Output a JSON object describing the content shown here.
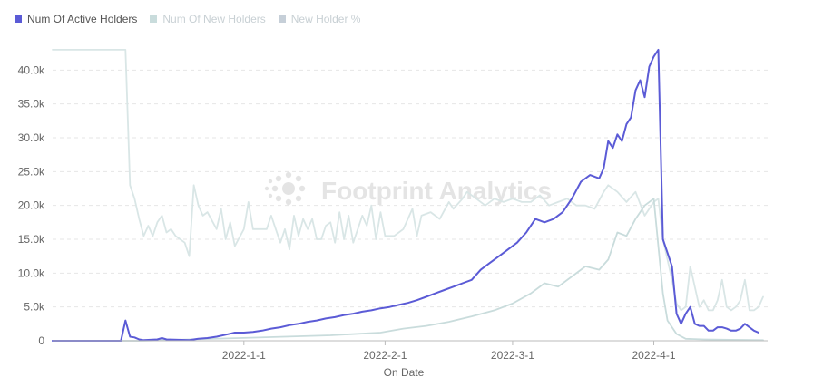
{
  "legend": [
    {
      "label": "Num Of Active Holders",
      "color": "#5b5bd6",
      "active": true
    },
    {
      "label": "Num Of New Holders",
      "color": "#c9dcdc",
      "active": false
    },
    {
      "label": "New Holder %",
      "color": "#c6cfd8",
      "active": false
    }
  ],
  "watermark": "Footprint Analytics",
  "chart_data": {
    "type": "line",
    "xlabel": "On Date",
    "ylabel": "",
    "x_range": [
      "2021-11-20",
      "2022-04-26"
    ],
    "ylim": [
      0,
      45000
    ],
    "y_ticks": [
      0,
      5000,
      10000,
      15000,
      20000,
      25000,
      30000,
      35000,
      40000
    ],
    "y_tick_labels": [
      "0",
      "5.0k",
      "10.0k",
      "15.0k",
      "20.0k",
      "25.0k",
      "30.0k",
      "35.0k",
      "40.0k"
    ],
    "x_ticks": [
      "2022-01-01",
      "2022-02-01",
      "2022-03-01",
      "2022-04-01"
    ],
    "x_tick_labels": [
      "2022-1-1",
      "2022-2-1",
      "2022-3-1",
      "2022-4-1"
    ],
    "grid": "horizontal dashed",
    "legend_position": "top-left",
    "series": [
      {
        "name": "New Holder %",
        "color": "#d9e6e6",
        "visible": true,
        "points": [
          [
            "2021-11-20",
            43000
          ],
          [
            "2021-12-06",
            43000
          ],
          [
            "2021-12-07",
            23000
          ],
          [
            "2021-12-08",
            21000
          ],
          [
            "2021-12-09",
            18000
          ],
          [
            "2021-12-10",
            15500
          ],
          [
            "2021-12-11",
            17000
          ],
          [
            "2021-12-12",
            15500
          ],
          [
            "2021-12-13",
            17500
          ],
          [
            "2021-12-14",
            18500
          ],
          [
            "2021-12-15",
            16000
          ],
          [
            "2021-12-16",
            16500
          ],
          [
            "2021-12-17",
            15500
          ],
          [
            "2021-12-18",
            15000
          ],
          [
            "2021-12-19",
            14500
          ],
          [
            "2021-12-20",
            12500
          ],
          [
            "2021-12-21",
            23000
          ],
          [
            "2021-12-22",
            20000
          ],
          [
            "2021-12-23",
            18500
          ],
          [
            "2021-12-24",
            19000
          ],
          [
            "2021-12-26",
            16500
          ],
          [
            "2021-12-27",
            19500
          ],
          [
            "2021-12-28",
            15000
          ],
          [
            "2021-12-29",
            17500
          ],
          [
            "2021-12-30",
            14000
          ],
          [
            "2022-01-01",
            16500
          ],
          [
            "2022-01-02",
            20500
          ],
          [
            "2022-01-03",
            16500
          ],
          [
            "2022-01-04",
            16500
          ],
          [
            "2022-01-05",
            16500
          ],
          [
            "2022-01-06",
            16500
          ],
          [
            "2022-01-07",
            18500
          ],
          [
            "2022-01-08",
            16500
          ],
          [
            "2022-01-09",
            14500
          ],
          [
            "2022-01-10",
            16500
          ],
          [
            "2022-01-11",
            13500
          ],
          [
            "2022-01-12",
            18500
          ],
          [
            "2022-01-13",
            15500
          ],
          [
            "2022-01-14",
            18000
          ],
          [
            "2022-01-15",
            16500
          ],
          [
            "2022-01-16",
            18000
          ],
          [
            "2022-01-17",
            15000
          ],
          [
            "2022-01-18",
            15000
          ],
          [
            "2022-01-19",
            17000
          ],
          [
            "2022-01-20",
            17500
          ],
          [
            "2022-01-21",
            14500
          ],
          [
            "2022-01-22",
            19000
          ],
          [
            "2022-01-23",
            15000
          ],
          [
            "2022-01-24",
            18500
          ],
          [
            "2022-01-25",
            14500
          ],
          [
            "2022-01-26",
            16500
          ],
          [
            "2022-01-27",
            18500
          ],
          [
            "2022-01-28",
            17000
          ],
          [
            "2022-01-29",
            20000
          ],
          [
            "2022-01-30",
            15000
          ],
          [
            "2022-01-31",
            19000
          ],
          [
            "2022-02-01",
            15500
          ],
          [
            "2022-02-03",
            15500
          ],
          [
            "2022-02-05",
            16500
          ],
          [
            "2022-02-07",
            19500
          ],
          [
            "2022-02-08",
            15500
          ],
          [
            "2022-02-09",
            18500
          ],
          [
            "2022-02-11",
            19000
          ],
          [
            "2022-02-13",
            18000
          ],
          [
            "2022-02-15",
            20500
          ],
          [
            "2022-02-16",
            19500
          ],
          [
            "2022-02-18",
            21000
          ],
          [
            "2022-02-19",
            22000
          ],
          [
            "2022-02-21",
            21000
          ],
          [
            "2022-02-23",
            20000
          ],
          [
            "2022-02-25",
            21000
          ],
          [
            "2022-02-27",
            20500
          ],
          [
            "2022-03-01",
            21000
          ],
          [
            "2022-03-03",
            20500
          ],
          [
            "2022-03-05",
            20500
          ],
          [
            "2022-03-07",
            21500
          ],
          [
            "2022-03-09",
            20000
          ],
          [
            "2022-03-11",
            20500
          ],
          [
            "2022-03-13",
            21000
          ],
          [
            "2022-03-15",
            20000
          ],
          [
            "2022-03-17",
            20000
          ],
          [
            "2022-03-19",
            19500
          ],
          [
            "2022-03-21",
            22000
          ],
          [
            "2022-03-22",
            23000
          ],
          [
            "2022-03-24",
            22000
          ],
          [
            "2022-03-26",
            20500
          ],
          [
            "2022-03-28",
            22000
          ],
          [
            "2022-03-30",
            18500
          ],
          [
            "2022-04-01",
            20500
          ],
          [
            "2022-04-02",
            21000
          ],
          [
            "2022-04-03",
            15000
          ],
          [
            "2022-04-04",
            12000
          ],
          [
            "2022-04-05",
            9000
          ],
          [
            "2022-04-06",
            5500
          ],
          [
            "2022-04-07",
            4500
          ],
          [
            "2022-04-08",
            5000
          ],
          [
            "2022-04-09",
            11000
          ],
          [
            "2022-04-10",
            8000
          ],
          [
            "2022-04-11",
            5000
          ],
          [
            "2022-04-12",
            6000
          ],
          [
            "2022-04-13",
            4500
          ],
          [
            "2022-04-14",
            4500
          ],
          [
            "2022-04-15",
            6000
          ],
          [
            "2022-04-16",
            9000
          ],
          [
            "2022-04-17",
            5000
          ],
          [
            "2022-04-18",
            4500
          ],
          [
            "2022-04-19",
            5000
          ],
          [
            "2022-04-20",
            6000
          ],
          [
            "2022-04-21",
            9000
          ],
          [
            "2022-04-22",
            4500
          ],
          [
            "2022-04-23",
            4500
          ],
          [
            "2022-04-24",
            5000
          ],
          [
            "2022-04-25",
            6500
          ]
        ]
      },
      {
        "name": "Num Of New Holders",
        "color": "#c9dcdc",
        "visible": true,
        "points": [
          [
            "2021-11-20",
            0
          ],
          [
            "2021-12-06",
            0
          ],
          [
            "2021-12-10",
            0
          ],
          [
            "2021-12-20",
            200
          ],
          [
            "2021-12-31",
            400
          ],
          [
            "2022-01-10",
            600
          ],
          [
            "2022-01-20",
            800
          ],
          [
            "2022-01-31",
            1200
          ],
          [
            "2022-02-05",
            1800
          ],
          [
            "2022-02-10",
            2200
          ],
          [
            "2022-02-15",
            2800
          ],
          [
            "2022-02-20",
            3600
          ],
          [
            "2022-02-25",
            4500
          ],
          [
            "2022-03-01",
            5500
          ],
          [
            "2022-03-05",
            7000
          ],
          [
            "2022-03-08",
            8500
          ],
          [
            "2022-03-11",
            8000
          ],
          [
            "2022-03-14",
            9500
          ],
          [
            "2022-03-17",
            11000
          ],
          [
            "2022-03-20",
            10500
          ],
          [
            "2022-03-22",
            12000
          ],
          [
            "2022-03-24",
            16000
          ],
          [
            "2022-03-26",
            15500
          ],
          [
            "2022-03-28",
            18000
          ],
          [
            "2022-03-30",
            20000
          ],
          [
            "2022-04-01",
            21000
          ],
          [
            "2022-04-02",
            14000
          ],
          [
            "2022-04-03",
            7000
          ],
          [
            "2022-04-04",
            3000
          ],
          [
            "2022-04-06",
            1000
          ],
          [
            "2022-04-08",
            300
          ],
          [
            "2022-04-12",
            200
          ],
          [
            "2022-04-18",
            150
          ],
          [
            "2022-04-25",
            100
          ]
        ]
      },
      {
        "name": "Num Of Active Holders",
        "color": "#5b5bd6",
        "visible": true,
        "points": [
          [
            "2021-11-20",
            0
          ],
          [
            "2021-12-05",
            0
          ],
          [
            "2021-12-06",
            3000
          ],
          [
            "2021-12-07",
            600
          ],
          [
            "2021-12-08",
            500
          ],
          [
            "2021-12-09",
            200
          ],
          [
            "2021-12-10",
            100
          ],
          [
            "2021-12-13",
            200
          ],
          [
            "2021-12-14",
            400
          ],
          [
            "2021-12-15",
            200
          ],
          [
            "2021-12-20",
            100
          ],
          [
            "2021-12-22",
            300
          ],
          [
            "2021-12-24",
            400
          ],
          [
            "2021-12-26",
            600
          ],
          [
            "2021-12-28",
            900
          ],
          [
            "2021-12-30",
            1200
          ],
          [
            "2022-01-01",
            1200
          ],
          [
            "2022-01-03",
            1300
          ],
          [
            "2022-01-05",
            1500
          ],
          [
            "2022-01-07",
            1800
          ],
          [
            "2022-01-09",
            2000
          ],
          [
            "2022-01-11",
            2300
          ],
          [
            "2022-01-13",
            2500
          ],
          [
            "2022-01-15",
            2800
          ],
          [
            "2022-01-17",
            3000
          ],
          [
            "2022-01-19",
            3300
          ],
          [
            "2022-01-21",
            3500
          ],
          [
            "2022-01-23",
            3800
          ],
          [
            "2022-01-25",
            4000
          ],
          [
            "2022-01-27",
            4300
          ],
          [
            "2022-01-29",
            4500
          ],
          [
            "2022-01-31",
            4800
          ],
          [
            "2022-02-02",
            5000
          ],
          [
            "2022-02-04",
            5300
          ],
          [
            "2022-02-06",
            5600
          ],
          [
            "2022-02-08",
            6000
          ],
          [
            "2022-02-10",
            6500
          ],
          [
            "2022-02-12",
            7000
          ],
          [
            "2022-02-14",
            7500
          ],
          [
            "2022-02-16",
            8000
          ],
          [
            "2022-02-18",
            8500
          ],
          [
            "2022-02-20",
            9000
          ],
          [
            "2022-02-22",
            10500
          ],
          [
            "2022-02-24",
            11500
          ],
          [
            "2022-02-26",
            12500
          ],
          [
            "2022-02-28",
            13500
          ],
          [
            "2022-03-02",
            14500
          ],
          [
            "2022-03-04",
            16000
          ],
          [
            "2022-03-06",
            18000
          ],
          [
            "2022-03-08",
            17500
          ],
          [
            "2022-03-10",
            18000
          ],
          [
            "2022-03-12",
            19000
          ],
          [
            "2022-03-14",
            21000
          ],
          [
            "2022-03-16",
            23500
          ],
          [
            "2022-03-18",
            24500
          ],
          [
            "2022-03-20",
            24000
          ],
          [
            "2022-03-21",
            25500
          ],
          [
            "2022-03-22",
            29500
          ],
          [
            "2022-03-23",
            28500
          ],
          [
            "2022-03-24",
            30500
          ],
          [
            "2022-03-25",
            29500
          ],
          [
            "2022-03-26",
            32000
          ],
          [
            "2022-03-27",
            33000
          ],
          [
            "2022-03-28",
            37000
          ],
          [
            "2022-03-29",
            38500
          ],
          [
            "2022-03-30",
            36000
          ],
          [
            "2022-03-31",
            40500
          ],
          [
            "2022-04-01",
            42000
          ],
          [
            "2022-04-02",
            43000
          ],
          [
            "2022-04-03",
            15000
          ],
          [
            "2022-04-04",
            13000
          ],
          [
            "2022-04-05",
            11000
          ],
          [
            "2022-04-06",
            4000
          ],
          [
            "2022-04-07",
            2500
          ],
          [
            "2022-04-08",
            4000
          ],
          [
            "2022-04-09",
            5000
          ],
          [
            "2022-04-10",
            2500
          ],
          [
            "2022-04-11",
            2200
          ],
          [
            "2022-04-12",
            2200
          ],
          [
            "2022-04-13",
            1500
          ],
          [
            "2022-04-14",
            1500
          ],
          [
            "2022-04-15",
            2000
          ],
          [
            "2022-04-16",
            2000
          ],
          [
            "2022-04-17",
            1800
          ],
          [
            "2022-04-18",
            1500
          ],
          [
            "2022-04-19",
            1500
          ],
          [
            "2022-04-20",
            1800
          ],
          [
            "2022-04-21",
            2500
          ],
          [
            "2022-04-22",
            2000
          ],
          [
            "2022-04-23",
            1500
          ],
          [
            "2022-04-24",
            1200
          ]
        ]
      }
    ]
  }
}
